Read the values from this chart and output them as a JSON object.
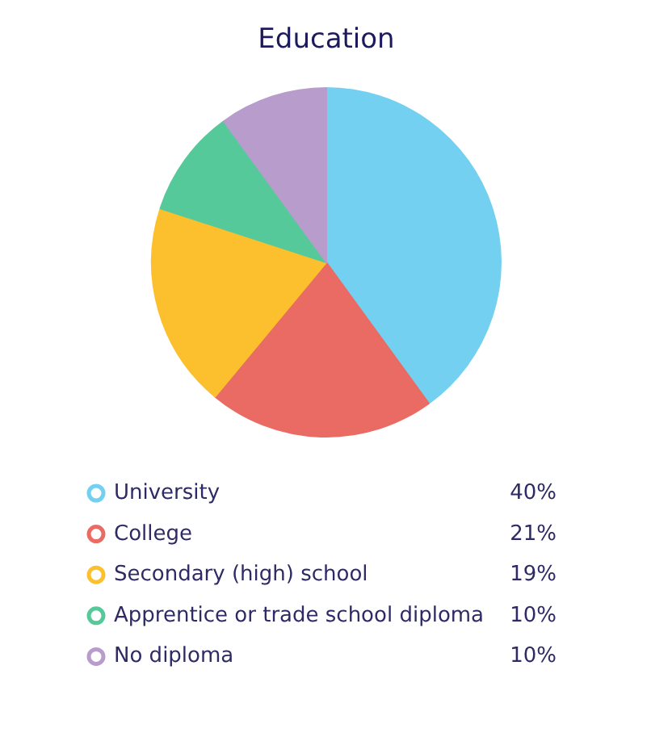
{
  "chart_data": {
    "type": "pie",
    "title": "Education",
    "categories": [
      "University",
      "College",
      "Secondary (high) school",
      "Apprentice or trade school diploma",
      "No diploma"
    ],
    "values": [
      40,
      21,
      19,
      10,
      10
    ],
    "colors": [
      "#74d0f0",
      "#e96b63",
      "#fcc02e",
      "#55c99a",
      "#b89ccc"
    ],
    "value_labels": [
      "40%",
      "21%",
      "19%",
      "10%",
      "10%"
    ],
    "legend": "bottom"
  }
}
